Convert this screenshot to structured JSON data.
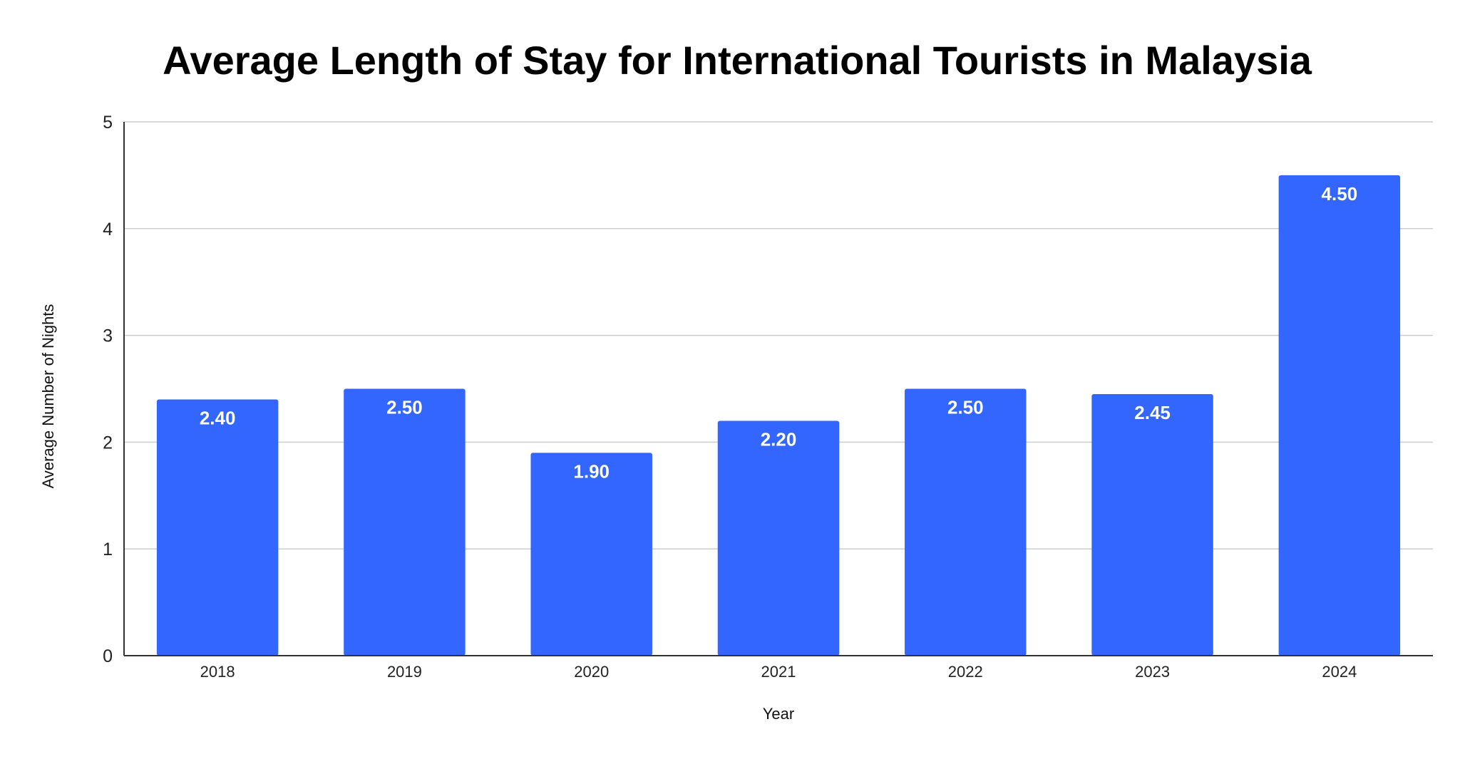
{
  "chart_data": {
    "type": "bar",
    "title": "Average Length of Stay for International Tourists in Malaysia",
    "xlabel": "Year",
    "ylabel": "Average Number of Nights",
    "categories": [
      "2018",
      "2019",
      "2020",
      "2021",
      "2022",
      "2023",
      "2024"
    ],
    "values": [
      2.4,
      2.5,
      1.9,
      2.2,
      2.5,
      2.45,
      4.5
    ],
    "value_labels": [
      "2.40",
      "2.50",
      "1.90",
      "2.20",
      "2.50",
      "2.45",
      "4.50"
    ],
    "ylim": [
      0,
      5
    ],
    "yticks": [
      0,
      1,
      2,
      3,
      4,
      5
    ],
    "ytick_labels": [
      "0",
      "1",
      "2",
      "3",
      "4",
      "5"
    ],
    "grid": true,
    "legend": "none",
    "bar_color": "#3366ff"
  }
}
